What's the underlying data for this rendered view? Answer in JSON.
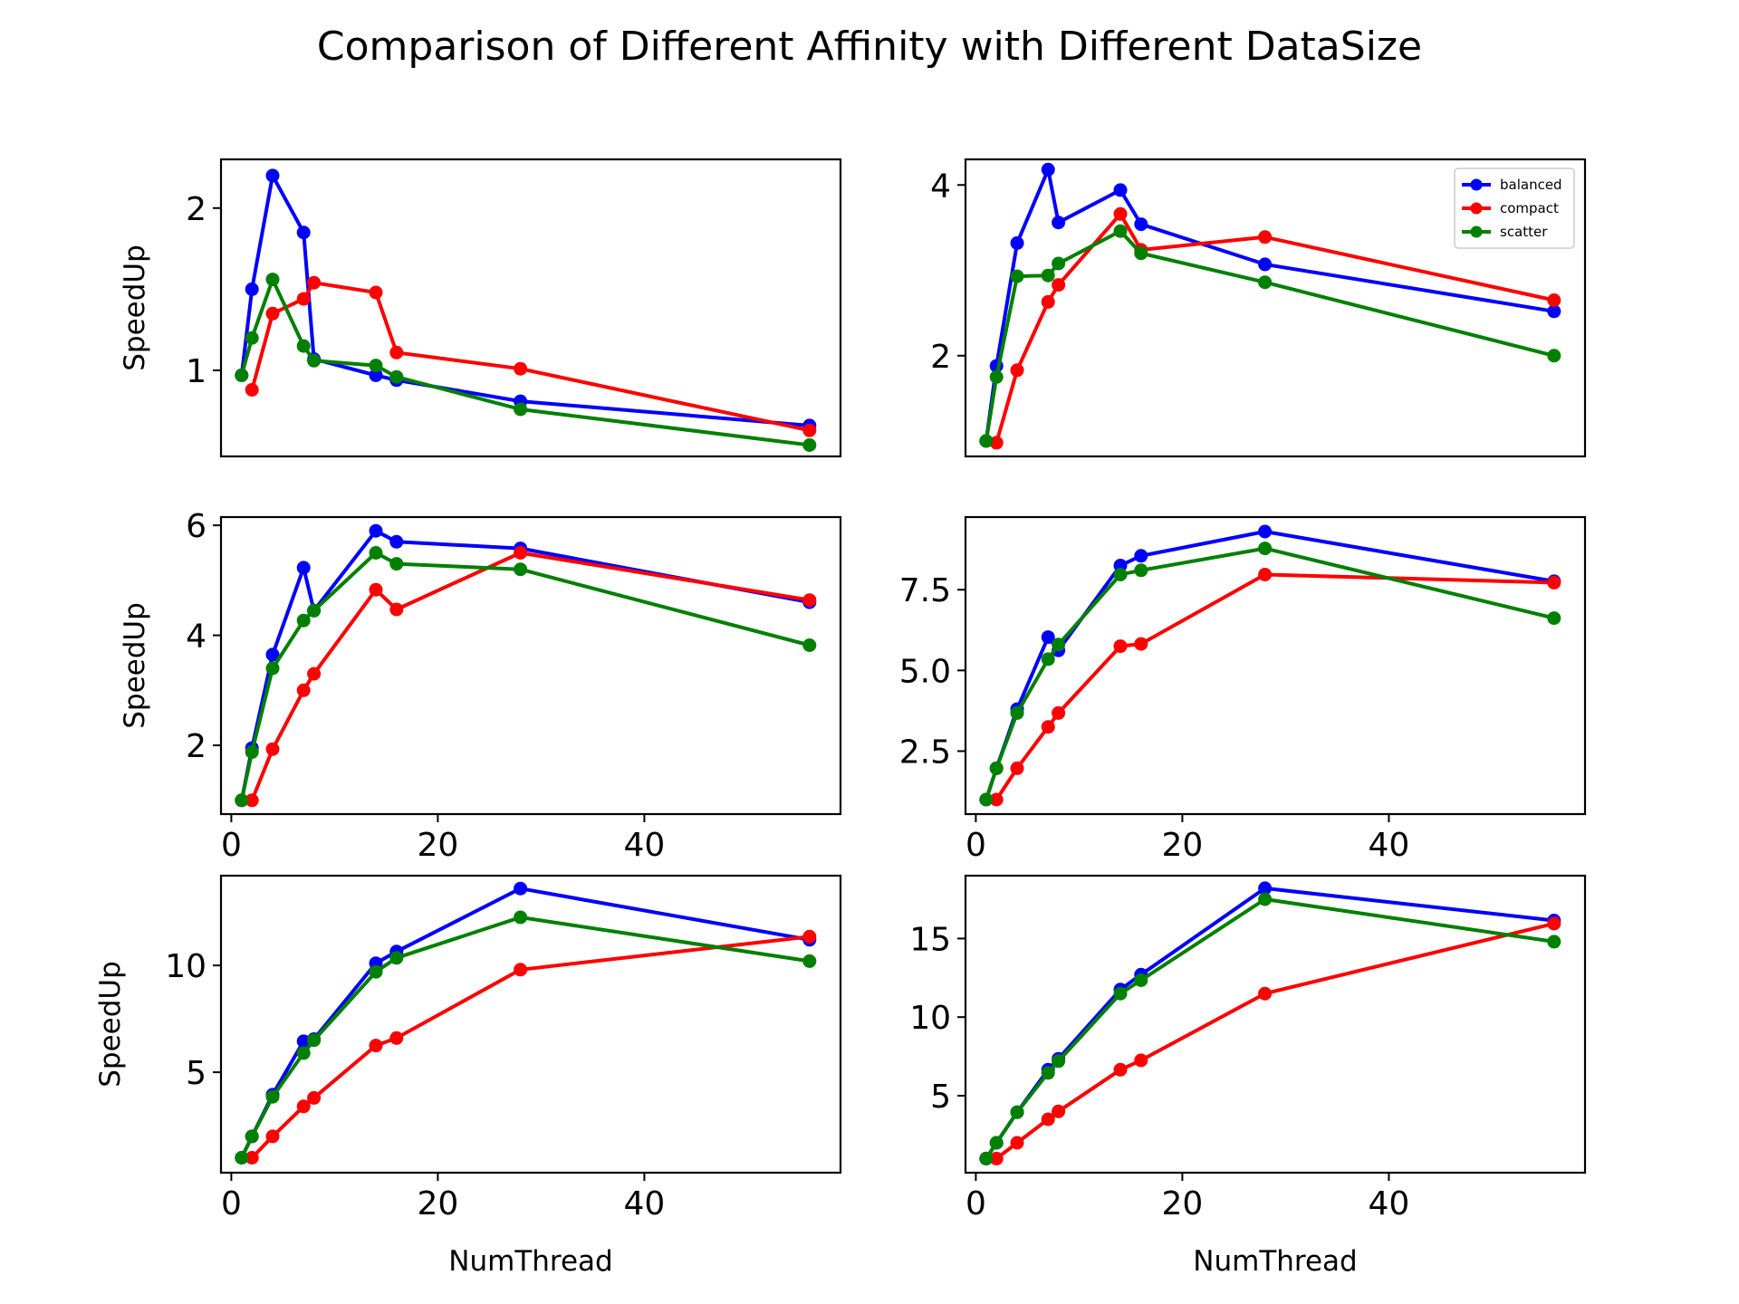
{
  "figure": {
    "title": "Comparison of Different Affinity with Different DataSize"
  },
  "colors": {
    "balanced": "#0000ff",
    "compact": "#ff0000",
    "scatter": "#008000"
  },
  "chart_data": [
    {
      "type": "line",
      "ylabel": "SpeedUp",
      "xlabel": "",
      "xlim": [
        -1,
        59
      ],
      "ylim": [
        0.47,
        2.3
      ],
      "xticks": [],
      "yticks": [
        1,
        2
      ],
      "ytick_labels": [
        "1",
        "2"
      ],
      "legend": false,
      "series": [
        {
          "name": "balanced",
          "x": [
            1,
            2,
            4,
            7,
            8,
            14,
            16,
            28,
            56
          ],
          "y": [
            0.97,
            1.5,
            2.2,
            1.85,
            1.07,
            0.97,
            0.94,
            0.81,
            0.66
          ]
        },
        {
          "name": "compact",
          "x": [
            2,
            4,
            7,
            8,
            14,
            16,
            28,
            56
          ],
          "y": [
            0.88,
            1.35,
            1.44,
            1.54,
            1.48,
            1.11,
            1.01,
            0.63
          ]
        },
        {
          "name": "scatter",
          "x": [
            1,
            2,
            4,
            7,
            8,
            14,
            16,
            28,
            56
          ],
          "y": [
            0.97,
            1.2,
            1.56,
            1.15,
            1.06,
            1.03,
            0.96,
            0.76,
            0.54
          ]
        }
      ]
    },
    {
      "type": "line",
      "ylabel": "",
      "xlabel": "",
      "xlim": [
        -1,
        59
      ],
      "ylim": [
        0.82,
        4.3
      ],
      "xticks": [],
      "yticks": [
        2,
        4
      ],
      "ytick_labels": [
        "2",
        "4"
      ],
      "legend": true,
      "legend_position": "upper right",
      "series": [
        {
          "name": "balanced",
          "x": [
            1,
            2,
            4,
            7,
            8,
            14,
            16,
            28,
            56
          ],
          "y": [
            1.0,
            1.88,
            3.32,
            4.18,
            3.56,
            3.94,
            3.54,
            3.07,
            2.52
          ]
        },
        {
          "name": "compact",
          "x": [
            2,
            4,
            7,
            8,
            14,
            16,
            28,
            56
          ],
          "y": [
            0.98,
            1.83,
            2.63,
            2.83,
            3.66,
            3.24,
            3.39,
            2.65
          ]
        },
        {
          "name": "scatter",
          "x": [
            1,
            2,
            4,
            7,
            8,
            14,
            16,
            28,
            56
          ],
          "y": [
            1.0,
            1.75,
            2.93,
            2.94,
            3.08,
            3.46,
            3.2,
            2.86,
            2.0
          ]
        }
      ]
    },
    {
      "type": "line",
      "ylabel": "SpeedUp",
      "xlabel": "",
      "xlim": [
        -1,
        59
      ],
      "ylim": [
        0.75,
        6.15
      ],
      "xticks": [
        0,
        20,
        40
      ],
      "yticks": [
        2,
        4,
        6
      ],
      "ytick_labels": [
        "2",
        "4",
        "6"
      ],
      "legend": false,
      "series": [
        {
          "name": "balanced",
          "x": [
            1,
            2,
            4,
            7,
            8,
            14,
            16,
            28,
            56
          ],
          "y": [
            1.0,
            1.95,
            3.65,
            5.23,
            4.45,
            5.9,
            5.7,
            5.58,
            4.6
          ]
        },
        {
          "name": "compact",
          "x": [
            2,
            4,
            7,
            8,
            14,
            16,
            28,
            56
          ],
          "y": [
            1.0,
            1.93,
            3.0,
            3.3,
            4.83,
            4.47,
            5.5,
            4.64
          ]
        },
        {
          "name": "scatter",
          "x": [
            1,
            2,
            4,
            7,
            8,
            14,
            16,
            28,
            56
          ],
          "y": [
            1.0,
            1.88,
            3.4,
            4.27,
            4.45,
            5.5,
            5.3,
            5.2,
            3.82
          ]
        }
      ]
    },
    {
      "type": "line",
      "ylabel": "",
      "xlabel": "",
      "xlim": [
        -1,
        59
      ],
      "ylim": [
        0.55,
        9.75
      ],
      "xticks": [
        0,
        20,
        40
      ],
      "yticks": [
        2.5,
        5.0,
        7.5
      ],
      "ytick_labels": [
        "2.5",
        "5.0",
        "7.5"
      ],
      "legend": false,
      "series": [
        {
          "name": "balanced",
          "x": [
            1,
            2,
            4,
            7,
            8,
            14,
            16,
            28,
            56
          ],
          "y": [
            1.0,
            1.97,
            3.8,
            6.03,
            5.62,
            8.25,
            8.55,
            9.3,
            7.76
          ]
        },
        {
          "name": "compact",
          "x": [
            2,
            4,
            7,
            8,
            14,
            16,
            28,
            56
          ],
          "y": [
            1.0,
            1.97,
            3.25,
            3.68,
            5.75,
            5.82,
            7.97,
            7.72
          ]
        },
        {
          "name": "scatter",
          "x": [
            1,
            2,
            4,
            7,
            8,
            14,
            16,
            28,
            56
          ],
          "y": [
            1.0,
            1.97,
            3.68,
            5.35,
            5.8,
            7.97,
            8.1,
            8.78,
            6.62
          ]
        }
      ]
    },
    {
      "type": "line",
      "ylabel": "SpeedUp",
      "xlabel": "NumThread",
      "xlim": [
        -1,
        59
      ],
      "ylim": [
        0.3,
        14.2
      ],
      "xticks": [
        0,
        20,
        40
      ],
      "yticks": [
        5,
        10
      ],
      "ytick_labels": [
        "5",
        "10"
      ],
      "legend": false,
      "series": [
        {
          "name": "balanced",
          "x": [
            1,
            2,
            4,
            7,
            8,
            14,
            16,
            28,
            56
          ],
          "y": [
            1.0,
            2.0,
            3.95,
            6.45,
            6.55,
            10.1,
            10.65,
            13.6,
            11.2
          ]
        },
        {
          "name": "compact",
          "x": [
            2,
            4,
            7,
            8,
            14,
            16,
            28,
            56
          ],
          "y": [
            1.0,
            2.0,
            3.4,
            3.8,
            6.25,
            6.6,
            9.8,
            11.35
          ]
        },
        {
          "name": "scatter",
          "x": [
            1,
            2,
            4,
            7,
            8,
            14,
            16,
            28,
            56
          ],
          "y": [
            1.0,
            2.0,
            3.85,
            5.9,
            6.5,
            9.7,
            10.35,
            12.25,
            10.2
          ]
        }
      ]
    },
    {
      "type": "line",
      "ylabel": "",
      "xlabel": "NumThread",
      "xlim": [
        -1,
        59
      ],
      "ylim": [
        0.1,
        19.0
      ],
      "xticks": [
        0,
        20,
        40
      ],
      "yticks": [
        5,
        10,
        15
      ],
      "ytick_labels": [
        "5",
        "10",
        "15"
      ],
      "legend": false,
      "series": [
        {
          "name": "balanced",
          "x": [
            1,
            2,
            4,
            7,
            8,
            14,
            16,
            28,
            56
          ],
          "y": [
            1.0,
            2.0,
            3.95,
            6.65,
            7.35,
            11.75,
            12.7,
            18.2,
            16.15
          ]
        },
        {
          "name": "compact",
          "x": [
            2,
            4,
            7,
            8,
            14,
            16,
            28,
            56
          ],
          "y": [
            1.0,
            2.0,
            3.5,
            4.0,
            6.65,
            7.25,
            11.5,
            15.95
          ]
        },
        {
          "name": "scatter",
          "x": [
            1,
            2,
            4,
            7,
            8,
            14,
            16,
            28,
            56
          ],
          "y": [
            1.0,
            2.0,
            3.95,
            6.45,
            7.2,
            11.5,
            12.35,
            17.5,
            14.8
          ]
        }
      ]
    }
  ]
}
